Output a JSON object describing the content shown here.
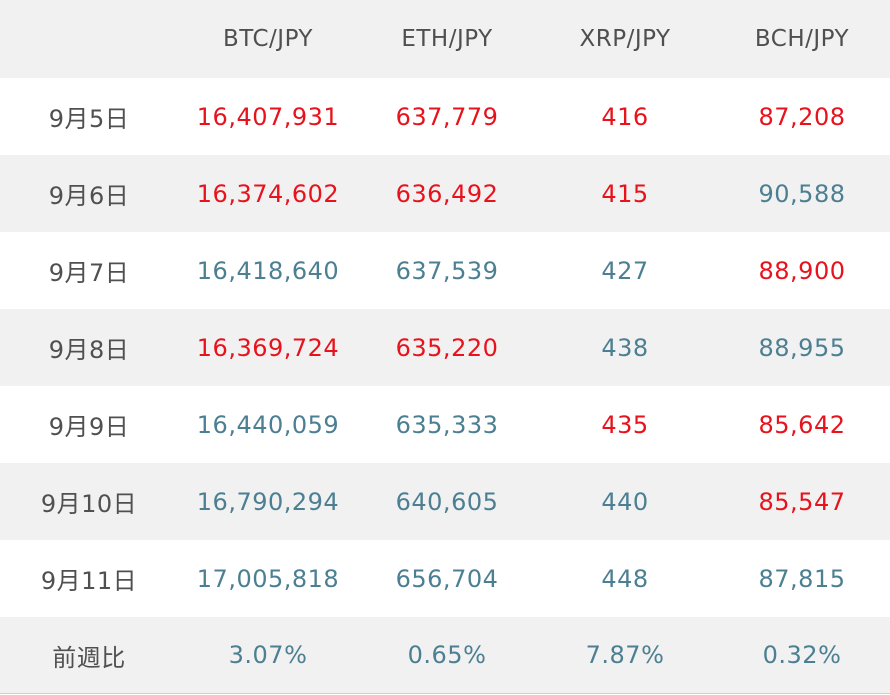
{
  "colors": {
    "positive_red": "#e8121c",
    "neutral_teal": "#4c7f92",
    "label_gray": "#505050",
    "stripe_bg": "#f1f1f1"
  },
  "header": {
    "corner": "",
    "columns": [
      "BTC/JPY",
      "ETH/JPY",
      "XRP/JPY",
      "BCH/JPY"
    ]
  },
  "rows": [
    {
      "date": "9月5日",
      "values": [
        "16,407,931",
        "637,779",
        "416",
        "87,208"
      ],
      "tone": [
        "up",
        "up",
        "up",
        "up"
      ]
    },
    {
      "date": "9月6日",
      "values": [
        "16,374,602",
        "636,492",
        "415",
        "90,588"
      ],
      "tone": [
        "up",
        "up",
        "up",
        "down"
      ]
    },
    {
      "date": "9月7日",
      "values": [
        "16,418,640",
        "637,539",
        "427",
        "88,900"
      ],
      "tone": [
        "down",
        "down",
        "down",
        "up"
      ]
    },
    {
      "date": "9月8日",
      "values": [
        "16,369,724",
        "635,220",
        "438",
        "88,955"
      ],
      "tone": [
        "up",
        "up",
        "down",
        "down"
      ]
    },
    {
      "date": "9月9日",
      "values": [
        "16,440,059",
        "635,333",
        "435",
        "85,642"
      ],
      "tone": [
        "down",
        "down",
        "up",
        "up"
      ]
    },
    {
      "date": "9月10日",
      "values": [
        "16,790,294",
        "640,605",
        "440",
        "85,547"
      ],
      "tone": [
        "down",
        "down",
        "down",
        "up"
      ]
    },
    {
      "date": "9月11日",
      "values": [
        "17,005,818",
        "656,704",
        "448",
        "87,815"
      ],
      "tone": [
        "down",
        "down",
        "down",
        "down"
      ]
    }
  ],
  "footer": {
    "label": "前週比",
    "values": [
      "3.07%",
      "0.65%",
      "7.87%",
      "0.32%"
    ]
  }
}
